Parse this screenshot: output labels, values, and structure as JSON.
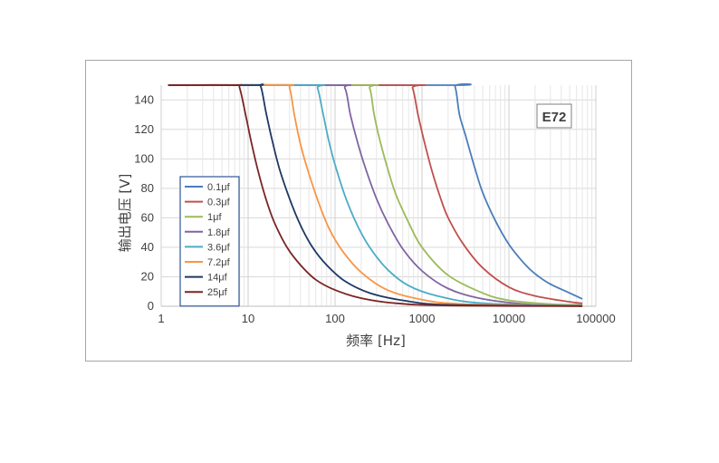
{
  "chart_data": {
    "type": "line",
    "xscale": "log",
    "xlim": [
      1,
      100000
    ],
    "ylim": [
      0,
      150
    ],
    "xticks": [
      "1",
      "10",
      "100",
      "1000",
      "10000",
      "100000"
    ],
    "yticks": [
      "0",
      "20",
      "40",
      "60",
      "80",
      "100",
      "120",
      "140"
    ],
    "xlabel": "频率 [Hz]",
    "ylabel": "输出电压 [V]",
    "badge": "E72",
    "legend_position": "left-center",
    "grid": "light gray, log-spaced minor vertical lines",
    "series": [
      {
        "name": "0.1μf",
        "color": "#4a7ebb",
        "x": [
          1.2,
          2000,
          2400,
          2700,
          3200,
          4000,
          5000,
          7000,
          10000,
          15000,
          20000,
          30000,
          50000,
          70000
        ],
        "y": [
          150,
          150,
          149,
          130,
          115,
          95,
          77,
          58,
          42,
          29,
          22,
          15,
          9,
          5
        ]
      },
      {
        "name": "0.3μf",
        "color": "#c0504d",
        "x": [
          1.2,
          650,
          780,
          900,
          1050,
          1300,
          1600,
          2000,
          3000,
          5000,
          10000,
          20000,
          50000,
          70000
        ],
        "y": [
          150,
          150,
          148,
          130,
          113,
          92,
          75,
          60,
          42,
          26,
          13,
          7,
          3,
          2
        ]
      },
      {
        "name": "1μf",
        "color": "#9bbb59",
        "x": [
          1.2,
          200,
          250,
          280,
          320,
          400,
          500,
          700,
          1000,
          2000,
          5000,
          10000,
          30000,
          70000
        ],
        "y": [
          150,
          150,
          148,
          131,
          115,
          94,
          76,
          57,
          40,
          21,
          9,
          4,
          1.5,
          1
        ]
      },
      {
        "name": "1.8μf",
        "color": "#8064a2",
        "x": [
          1.2,
          100,
          130,
          150,
          180,
          220,
          300,
          400,
          600,
          1000,
          2000,
          5000,
          20000,
          70000
        ],
        "y": [
          150,
          150,
          148,
          130,
          112,
          95,
          73,
          57,
          39,
          24,
          12,
          5,
          1,
          0.5
        ]
      },
      {
        "name": "3.6μf",
        "color": "#4bacc6",
        "x": [
          1.2,
          55,
          63,
          72,
          85,
          100,
          130,
          180,
          250,
          400,
          700,
          1500,
          5000,
          70000
        ],
        "y": [
          150,
          150,
          148,
          132,
          112,
          96,
          75,
          55,
          40,
          25,
          14,
          7,
          2,
          0.3
        ]
      },
      {
        "name": "7.2μf",
        "color": "#f79646",
        "x": [
          1.2,
          25,
          30,
          34,
          40,
          50,
          65,
          85,
          120,
          200,
          400,
          1000,
          3000,
          70000
        ],
        "y": [
          150,
          150,
          148,
          130,
          110,
          90,
          70,
          53,
          38,
          23,
          11,
          4.5,
          1.5,
          0.2
        ]
      },
      {
        "name": "14μf",
        "color": "#1f3864",
        "x": [
          1.2,
          12,
          14,
          16,
          19,
          23,
          30,
          40,
          55,
          80,
          130,
          250,
          600,
          2000,
          70000
        ],
        "y": [
          150,
          150,
          149,
          132,
          112,
          93,
          73,
          55,
          40,
          28,
          17,
          9,
          4,
          1,
          0.1
        ]
      },
      {
        "name": "25μf",
        "color": "#7b2424",
        "x": [
          1.2,
          7,
          8,
          9.5,
          11,
          13,
          16,
          20,
          28,
          40,
          60,
          100,
          200,
          500,
          2000,
          70000
        ],
        "y": [
          150,
          150,
          148,
          128,
          110,
          92,
          73,
          57,
          40,
          28,
          18,
          11,
          5.5,
          2,
          0.5,
          0.05
        ]
      }
    ]
  }
}
